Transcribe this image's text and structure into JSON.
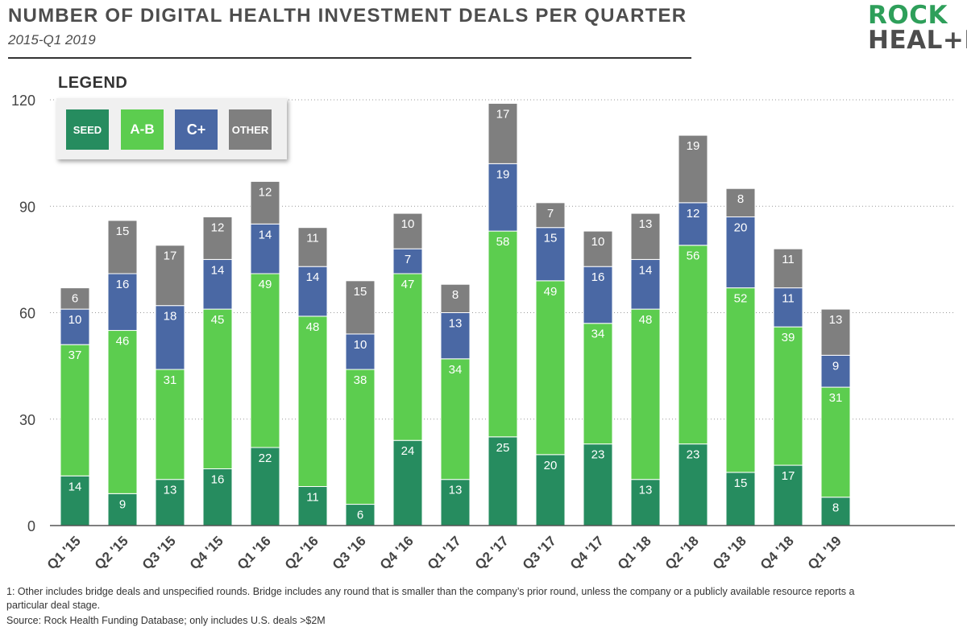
{
  "header": {
    "title": "NUMBER OF DIGITAL HEALTH INVESTMENT DEALS PER QUARTER",
    "subtitle": "2015-Q1 2019"
  },
  "logo": {
    "line1": "ROCK",
    "line2": "HEAL+H"
  },
  "legend": {
    "title": "LEGEND",
    "items": [
      {
        "label": "SEED",
        "color": "#268c5f"
      },
      {
        "label": "A-B",
        "color": "#5ccd4f"
      },
      {
        "label": "C+",
        "color": "#4a68a4"
      },
      {
        "label": "OTHER",
        "color": "#7f7f7f"
      }
    ]
  },
  "chart_data": {
    "type": "bar",
    "stacked": true,
    "categories": [
      "Q1 '15",
      "Q2 '15",
      "Q3 '15",
      "Q4 '15",
      "Q1 '16",
      "Q2 '16",
      "Q3 '16",
      "Q4 '16",
      "Q1 '17",
      "Q2 '17",
      "Q3 '17",
      "Q4 '17",
      "Q1 '18",
      "Q2 '18",
      "Q3 '18",
      "Q4 '18",
      "Q1 '19"
    ],
    "series": [
      {
        "name": "SEED",
        "color": "#268c5f",
        "values": [
          14,
          9,
          13,
          16,
          22,
          11,
          6,
          24,
          13,
          25,
          20,
          23,
          13,
          23,
          15,
          17,
          8
        ]
      },
      {
        "name": "A-B",
        "color": "#5ccd4f",
        "values": [
          37,
          46,
          31,
          45,
          49,
          48,
          38,
          47,
          34,
          58,
          49,
          34,
          48,
          56,
          52,
          39,
          31
        ]
      },
      {
        "name": "C+",
        "color": "#4a68a4",
        "values": [
          10,
          16,
          18,
          14,
          14,
          14,
          10,
          7,
          13,
          19,
          15,
          16,
          14,
          12,
          20,
          11,
          9
        ]
      },
      {
        "name": "OTHER",
        "color": "#7f7f7f",
        "values": [
          6,
          15,
          17,
          12,
          12,
          11,
          15,
          10,
          8,
          17,
          7,
          10,
          13,
          19,
          8,
          11,
          13
        ]
      }
    ],
    "ylim": [
      0,
      120
    ],
    "yticks": [
      0,
      30,
      60,
      90,
      120
    ],
    "grid": true
  },
  "footnote": "1: Other includes bridge deals and unspecified rounds. Bridge includes any round that is smaller than the company’s prior round, unless the company or a publicly available resource reports a particular deal stage.",
  "source": "Source: Rock Health Funding Database; only includes U.S. deals >$2M"
}
